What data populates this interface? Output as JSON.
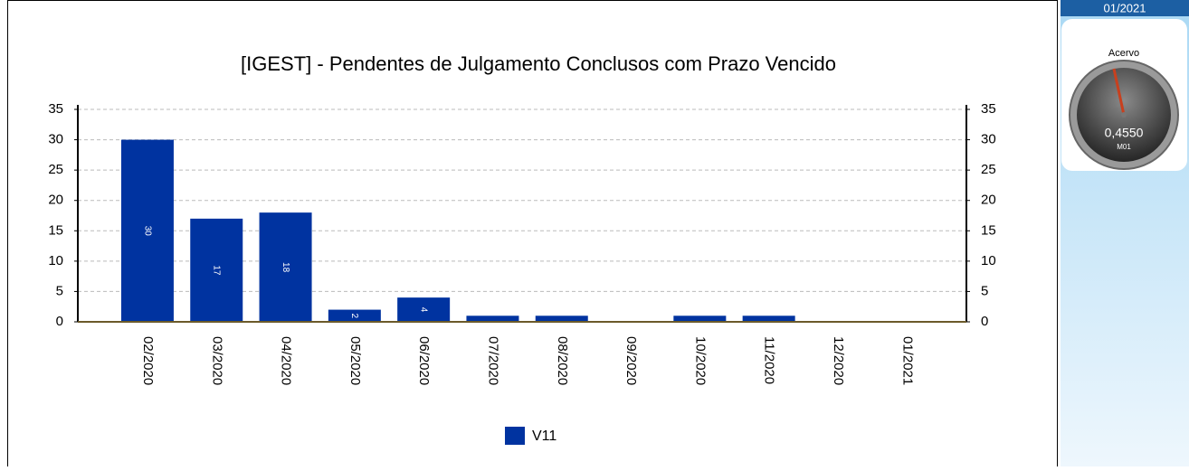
{
  "chart_data": {
    "type": "bar",
    "title": "[IGEST]  - Pendentes de Julgamento Conclusos com Prazo Vencido",
    "categories": [
      "02/2020",
      "03/2020",
      "04/2020",
      "05/2020",
      "06/2020",
      "07/2020",
      "08/2020",
      "09/2020",
      "10/2020",
      "11/2020",
      "12/2020",
      "01/2021"
    ],
    "series": [
      {
        "name": "V11",
        "color": "#0033a0",
        "values": [
          30,
          17,
          18,
          2,
          4,
          1,
          1,
          0,
          1,
          1,
          0,
          0
        ]
      }
    ],
    "ylim": [
      0,
      35
    ],
    "yticks": [
      0,
      5,
      10,
      15,
      20,
      25,
      30,
      35
    ],
    "y2lim": [
      0,
      35
    ],
    "y2ticks": [
      0,
      5,
      10,
      15,
      20,
      25,
      30,
      35
    ],
    "grid": true,
    "legend": "bottom"
  },
  "panel": {
    "period": "01/2021",
    "gauge_title": "Acervo",
    "gauge_value": "0,4550",
    "gauge_unit": "M01"
  }
}
